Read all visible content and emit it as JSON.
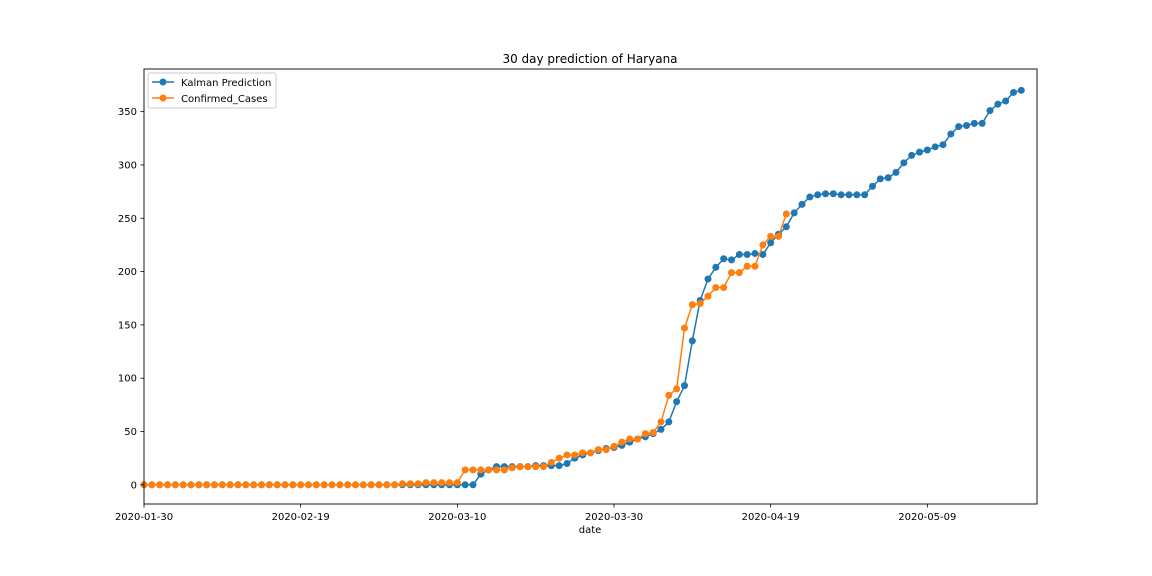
{
  "chart_data": {
    "type": "line",
    "title": "30 day prediction of Haryana",
    "xlabel": "date",
    "ylabel": "",
    "x_start": "2020-01-30",
    "x_end": "2020-05-23",
    "xlim": [
      "2020-01-30",
      "2020-05-23"
    ],
    "ylim": [
      -18,
      390
    ],
    "x_tick_labels": [
      "2020-01-30",
      "2020-02-19",
      "2020-03-10",
      "2020-03-30",
      "2020-04-19",
      "2020-05-09"
    ],
    "y_tick_values": [
      0,
      50,
      100,
      150,
      200,
      250,
      300,
      350
    ],
    "grid": false,
    "legend_position": "upper-left",
    "series": [
      {
        "name": "Kalman Prediction",
        "color": "#1f77b4",
        "marker": "circle",
        "values": [
          0,
          0,
          0,
          0,
          0,
          0,
          0,
          0,
          0,
          0,
          0,
          0,
          0,
          0,
          0,
          0,
          0,
          0,
          0,
          0,
          0,
          0,
          0,
          0,
          0,
          0,
          0,
          0,
          0,
          0,
          0,
          0,
          0,
          0,
          0,
          0,
          0,
          0,
          0,
          0,
          0,
          0,
          0,
          10,
          14,
          17,
          17,
          17,
          17,
          17,
          18,
          18,
          18,
          18,
          20,
          25,
          28,
          30,
          32,
          34,
          35,
          37,
          40,
          43,
          45,
          48,
          52,
          59,
          78,
          93,
          135,
          173,
          193,
          204,
          212,
          211,
          216,
          216,
          217,
          216,
          227,
          235,
          242,
          255,
          263,
          270,
          272,
          273,
          273,
          272,
          272,
          272,
          272,
          280,
          287,
          288,
          293,
          302,
          309,
          312,
          314,
          317,
          319,
          329,
          336,
          337,
          339,
          339,
          351,
          357,
          360,
          368,
          370
        ]
      },
      {
        "name": "Confirmed_Cases",
        "color": "#ff7f0e",
        "marker": "circle",
        "values": [
          0,
          0,
          0,
          0,
          0,
          0,
          0,
          0,
          0,
          0,
          0,
          0,
          0,
          0,
          0,
          0,
          0,
          0,
          0,
          0,
          0,
          0,
          0,
          0,
          0,
          0,
          0,
          0,
          0,
          0,
          0,
          0,
          0,
          1,
          1,
          1,
          2,
          2,
          2,
          2,
          2,
          14,
          14,
          14,
          14,
          14,
          14,
          16,
          17,
          17,
          17,
          17,
          21,
          25,
          28,
          28,
          30,
          30,
          33,
          33,
          36,
          40,
          43,
          43,
          48,
          49,
          59,
          84,
          90,
          147,
          169,
          170,
          177,
          185,
          185,
          199,
          199,
          205,
          205,
          225,
          233,
          233,
          254
        ]
      }
    ]
  }
}
